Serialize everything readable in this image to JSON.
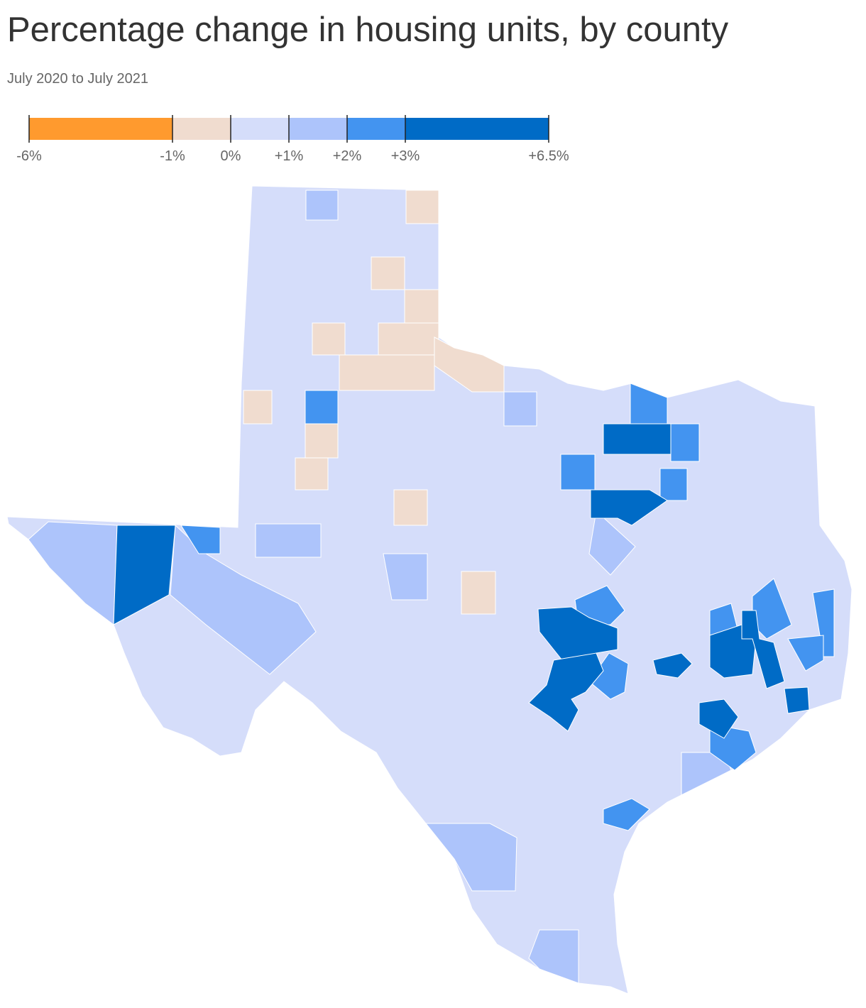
{
  "header": {
    "title": "Percentage change in housing units, by county",
    "subtitle": "July 2020 to July 2021"
  },
  "legend": {
    "breaks": [
      {
        "value": -6,
        "label": "-6%"
      },
      {
        "value": -1,
        "label": "-1%"
      },
      {
        "value": 0,
        "label": "0%"
      },
      {
        "value": 1,
        "label": "+1%"
      },
      {
        "value": 2,
        "label": "+2%"
      },
      {
        "value": 3,
        "label": "+3%"
      },
      {
        "value": 6.5,
        "label": "+6.5%"
      }
    ],
    "colors": [
      "#ff9a2e",
      "#f0dccf",
      "#d5ddfa",
      "#adc4fb",
      "#4394f0",
      "#006bc6"
    ]
  }
}
